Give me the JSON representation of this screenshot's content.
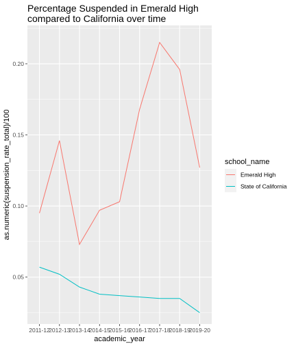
{
  "chart_data": {
    "type": "line",
    "title_lines": [
      "Percentage Suspended in Emerald High",
      "compared to California over time"
    ],
    "xlabel": "academic_year",
    "ylabel": "as.numeric(suspension_rate_total)/100",
    "categories": [
      "2011-12",
      "2012-13",
      "2013-14",
      "2014-15",
      "2015-16",
      "2016-17",
      "2017-18",
      "2018-19",
      "2019-20"
    ],
    "ylim": [
      0.017,
      0.227
    ],
    "yticks": [
      0.05,
      0.1,
      0.15,
      0.2
    ],
    "ytick_labels": [
      "0.05",
      "0.10",
      "0.15",
      "0.20"
    ],
    "grid": true,
    "legend": {
      "title": "school_name",
      "position": "right"
    },
    "series": [
      {
        "name": "Emerald High",
        "color": "#F8766D",
        "values": [
          0.095,
          0.146,
          0.073,
          0.097,
          0.103,
          0.168,
          0.215,
          0.196,
          0.127
        ]
      },
      {
        "name": "State of California",
        "color": "#00BFC4",
        "values": [
          0.057,
          0.052,
          0.043,
          0.038,
          0.037,
          0.036,
          0.035,
          0.035,
          0.025
        ]
      }
    ]
  }
}
